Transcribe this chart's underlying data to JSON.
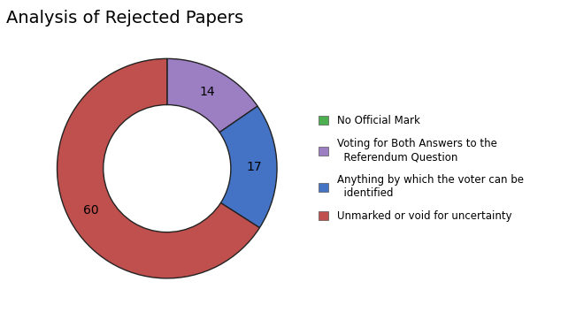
{
  "title": "Analysis of Rejected Papers",
  "labels": [
    "No Official Mark",
    "Voting for Both Answers to the\n  Referendum Question",
    "Anything by which the voter can be\n  identified",
    "Unmarked or void for uncertainty"
  ],
  "values": [
    0.01,
    14,
    17,
    60
  ],
  "colors": [
    "#4caf50",
    "#9b7fc2",
    "#4472c4",
    "#c0504d"
  ],
  "autopct_values": [
    "",
    "14",
    "17",
    "60"
  ],
  "wedge_edge_color": "#222222",
  "wedge_linewidth": 1.0,
  "title_fontsize": 14,
  "label_fontsize": 9,
  "donut_width": 0.42,
  "bg_color": "#ffffff"
}
